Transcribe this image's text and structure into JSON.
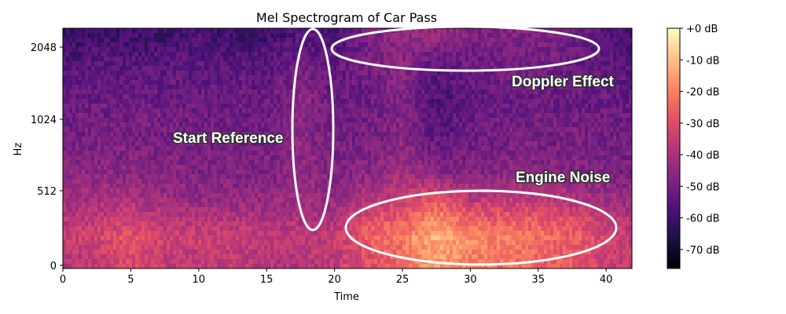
{
  "chart_data": {
    "type": "heatmap",
    "title": "Mel Spectrogram of Car Pass",
    "xlabel": "Time",
    "ylabel": "Hz",
    "xlim": [
      0,
      41.9
    ],
    "xticks": [
      0,
      5,
      10,
      15,
      20,
      25,
      30,
      35,
      40
    ],
    "yticks": [
      0,
      512,
      1024,
      2048
    ],
    "y_scale": "mel",
    "colormap": "magma",
    "colorbar": {
      "range_db": [
        -76,
        0
      ],
      "ticks": [
        "+0 dB",
        "-10 dB",
        "-20 dB",
        "-30 dB",
        "-40 dB",
        "-50 dB",
        "-60 dB",
        "-70 dB"
      ],
      "tick_values": [
        0,
        -10,
        -20,
        -30,
        -40,
        -50,
        -60,
        -70
      ]
    },
    "approx_grid": {
      "times": [
        0,
        2.5,
        5,
        7.5,
        10,
        12.5,
        15,
        17.5,
        20,
        22.5,
        25,
        27.5,
        30,
        32.5,
        35,
        37.5,
        40,
        42.5
      ],
      "freqs_hz": [
        60,
        190,
        320,
        450,
        640,
        900,
        1280,
        1800,
        2200
      ],
      "db": [
        [
          -38,
          -36,
          -30,
          -36,
          -36,
          -36,
          -38,
          -38,
          -36,
          -30,
          -24,
          -15,
          -20,
          -22,
          -25,
          -28,
          -34,
          -38
        ],
        [
          -34,
          -32,
          -28,
          -33,
          -33,
          -34,
          -36,
          -36,
          -35,
          -25,
          -20,
          -12,
          -18,
          -20,
          -22,
          -26,
          -32,
          -36
        ],
        [
          -38,
          -36,
          -34,
          -38,
          -38,
          -38,
          -40,
          -40,
          -40,
          -30,
          -27,
          -18,
          -26,
          -27,
          -28,
          -30,
          -36,
          -40
        ],
        [
          -42,
          -40,
          -40,
          -42,
          -44,
          -44,
          -44,
          -42,
          -44,
          -38,
          -34,
          -28,
          -36,
          -36,
          -36,
          -38,
          -42,
          -44
        ],
        [
          -46,
          -46,
          -46,
          -47,
          -48,
          -48,
          -48,
          -44,
          -48,
          -46,
          -42,
          -46,
          -48,
          -46,
          -46,
          -48,
          -48,
          -50
        ],
        [
          -50,
          -50,
          -50,
          -50,
          -50,
          -50,
          -50,
          -46,
          -50,
          -50,
          -46,
          -55,
          -52,
          -50,
          -50,
          -50,
          -50,
          -52
        ],
        [
          -52,
          -52,
          -52,
          -52,
          -52,
          -52,
          -52,
          -46,
          -52,
          -52,
          -48,
          -58,
          -54,
          -52,
          -52,
          -52,
          -52,
          -54
        ],
        [
          -56,
          -55,
          -55,
          -55,
          -55,
          -55,
          -55,
          -50,
          -54,
          -50,
          -46,
          -55,
          -52,
          -50,
          -50,
          -52,
          -54,
          -56
        ],
        [
          -62,
          -60,
          -60,
          -60,
          -58,
          -60,
          -60,
          -56,
          -58,
          -50,
          -44,
          -44,
          -48,
          -48,
          -48,
          -50,
          -56,
          -60
        ]
      ]
    },
    "annotations": [
      {
        "label": "Start Reference",
        "shape": "ellipse"
      },
      {
        "label": "Doppler Effect",
        "shape": "ellipse"
      },
      {
        "label": "Engine Noise",
        "shape": "ellipse"
      }
    ]
  }
}
